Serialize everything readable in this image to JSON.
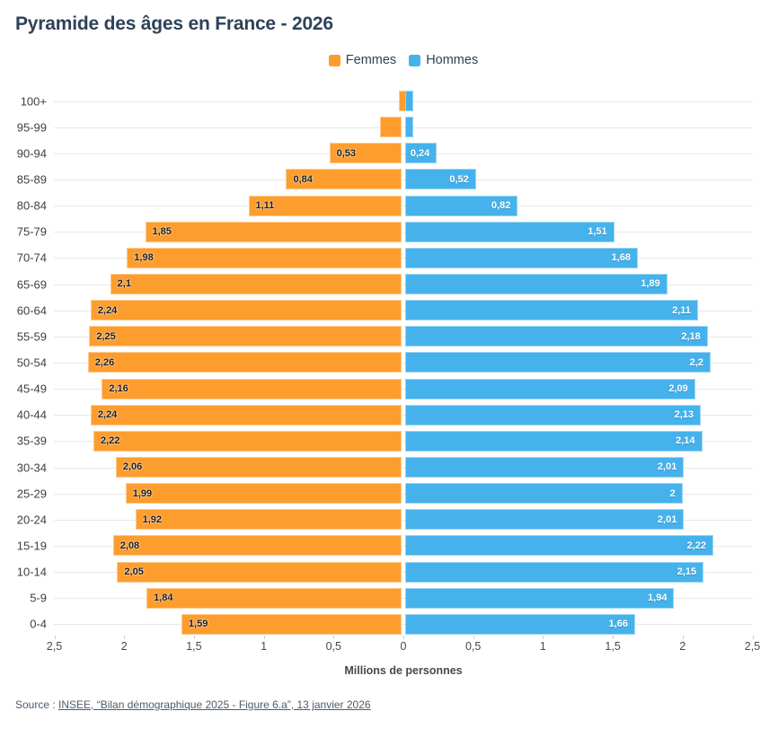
{
  "header": {
    "title": "Pyramide des âges en France - 2026"
  },
  "legend": {
    "items": [
      {
        "label": "Femmes",
        "color": "#FD9D2E"
      },
      {
        "label": "Hommes",
        "color": "#45B2EC"
      }
    ]
  },
  "chart_data": {
    "type": "bar",
    "subtype": "population-pyramid",
    "title": "Pyramide des âges en France - 2026",
    "unit": "millions de personnes",
    "categories": [
      "100+",
      "95-99",
      "90-94",
      "85-89",
      "80-84",
      "75-79",
      "70-74",
      "65-69",
      "60-64",
      "55-59",
      "50-54",
      "45-49",
      "40-44",
      "35-39",
      "30-34",
      "25-29",
      "20-24",
      "15-19",
      "10-14",
      "5-9",
      "0-4"
    ],
    "series": [
      {
        "name": "Femmes",
        "side": "left",
        "color": "#FD9D2E",
        "values": [
          0.03,
          0.17,
          0.53,
          0.84,
          1.11,
          1.85,
          1.98,
          2.1,
          2.24,
          2.25,
          2.26,
          2.16,
          2.24,
          2.22,
          2.06,
          1.99,
          1.92,
          2.08,
          2.05,
          1.84,
          1.59
        ],
        "bar_labels": [
          "",
          "",
          "0,53",
          "0,84",
          "1,11",
          "1,85",
          "1,98",
          "2,1",
          "2,24",
          "2,25",
          "2,26",
          "2,16",
          "2,24",
          "2,22",
          "2,06",
          "1,99",
          "1,92",
          "2,08",
          "2,05",
          "1,84",
          "1,59"
        ]
      },
      {
        "name": "Hommes",
        "side": "right",
        "color": "#45B2EC",
        "values": [
          0.01,
          0.06,
          0.24,
          0.52,
          0.82,
          1.51,
          1.68,
          1.89,
          2.11,
          2.18,
          2.2,
          2.09,
          2.13,
          2.14,
          2.01,
          2.0,
          2.01,
          2.22,
          2.15,
          1.94,
          1.66
        ],
        "bar_labels": [
          "",
          "",
          "0,24",
          "0,52",
          "0,82",
          "1,51",
          "1,68",
          "1,89",
          "2,11",
          "2,18",
          "2,2",
          "2,09",
          "2,13",
          "2,14",
          "2,01",
          "2",
          "2,01",
          "2,22",
          "2,15",
          "1,94",
          "1,66"
        ]
      }
    ],
    "x_ticks": [
      "2,5",
      "2",
      "1,5",
      "1",
      "0,5",
      "0",
      "0,5",
      "1",
      "1,5",
      "2",
      "2,5"
    ],
    "x_tick_units": [
      -2.5,
      -2,
      -1.5,
      -1,
      -0.5,
      0,
      0.5,
      1,
      1.5,
      2,
      2.5
    ],
    "xlabel": "Millions de personnes",
    "xlim": [
      -2.5,
      2.5
    ],
    "grid": "horizontal-row-lines",
    "legend_position": "top-center"
  },
  "footer": {
    "source_prefix": "Source : ",
    "source_link": "INSEE, “Bilan démographique 2025 - Figure 6.a”, 13 janvier 2026"
  }
}
